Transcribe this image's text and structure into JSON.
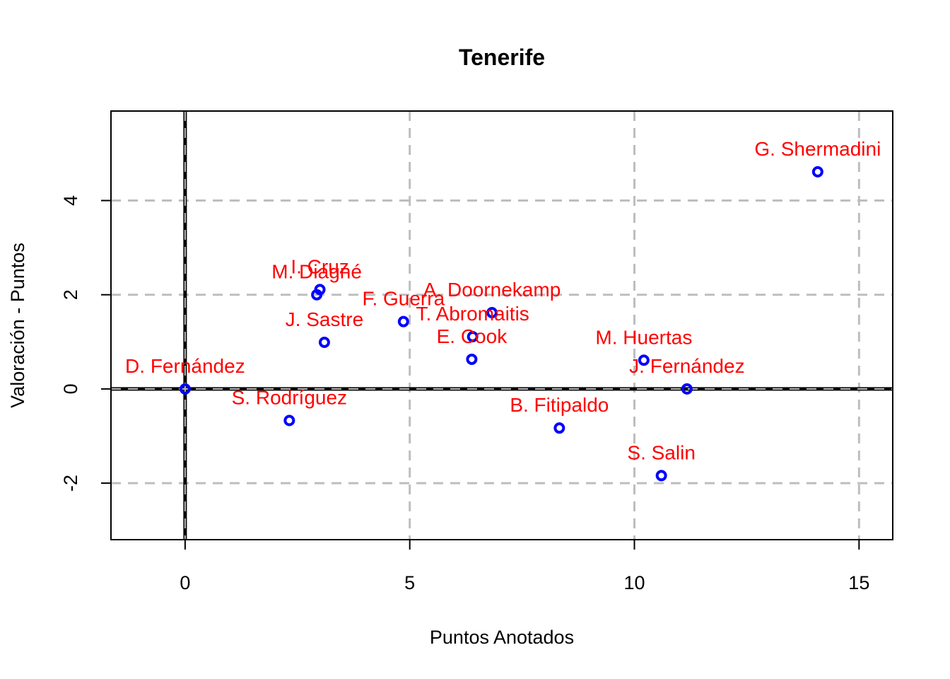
{
  "chart_data": {
    "type": "scatter",
    "title": "Tenerife",
    "xlabel": "Puntos Anotados",
    "ylabel": "Valoración - Puntos",
    "xlim": [
      -1.65,
      15.75
    ],
    "ylim": [
      -3.2,
      5.9
    ],
    "x_ticks": [
      0,
      5,
      10,
      15
    ],
    "y_ticks": [
      -2,
      0,
      2,
      4
    ],
    "grid": true,
    "reference_lines": {
      "x": 0,
      "y": 0
    },
    "colors": {
      "points": "#0000ff",
      "labels": "#ff0000",
      "grid": "#bebebe",
      "reference": "#000000"
    },
    "points": [
      {
        "label": "G. Shermadini",
        "x": 14.08,
        "y": 4.61
      },
      {
        "label": "I. Cruz",
        "x": 3.0,
        "y": 2.11
      },
      {
        "label": "M. Diagné",
        "x": 2.93,
        "y": 2.0
      },
      {
        "label": "A. Doornekamp",
        "x": 6.83,
        "y": 1.62
      },
      {
        "label": "F. Guerra",
        "x": 4.86,
        "y": 1.43
      },
      {
        "label": "T. Abromaitis",
        "x": 6.4,
        "y": 1.11
      },
      {
        "label": "J. Sastre",
        "x": 3.1,
        "y": 0.99
      },
      {
        "label": "E. Cook",
        "x": 6.38,
        "y": 0.63
      },
      {
        "label": "M. Huertas",
        "x": 10.21,
        "y": 0.61
      },
      {
        "label": "D. Fernández",
        "x": 0.0,
        "y": 0.0
      },
      {
        "label": "J. Fernández",
        "x": 11.17,
        "y": 0.0
      },
      {
        "label": "S. Rodríguez",
        "x": 2.32,
        "y": -0.67
      },
      {
        "label": "B. Fitipaldo",
        "x": 8.33,
        "y": -0.83
      },
      {
        "label": "S. Salin",
        "x": 10.6,
        "y": -1.84
      }
    ]
  }
}
